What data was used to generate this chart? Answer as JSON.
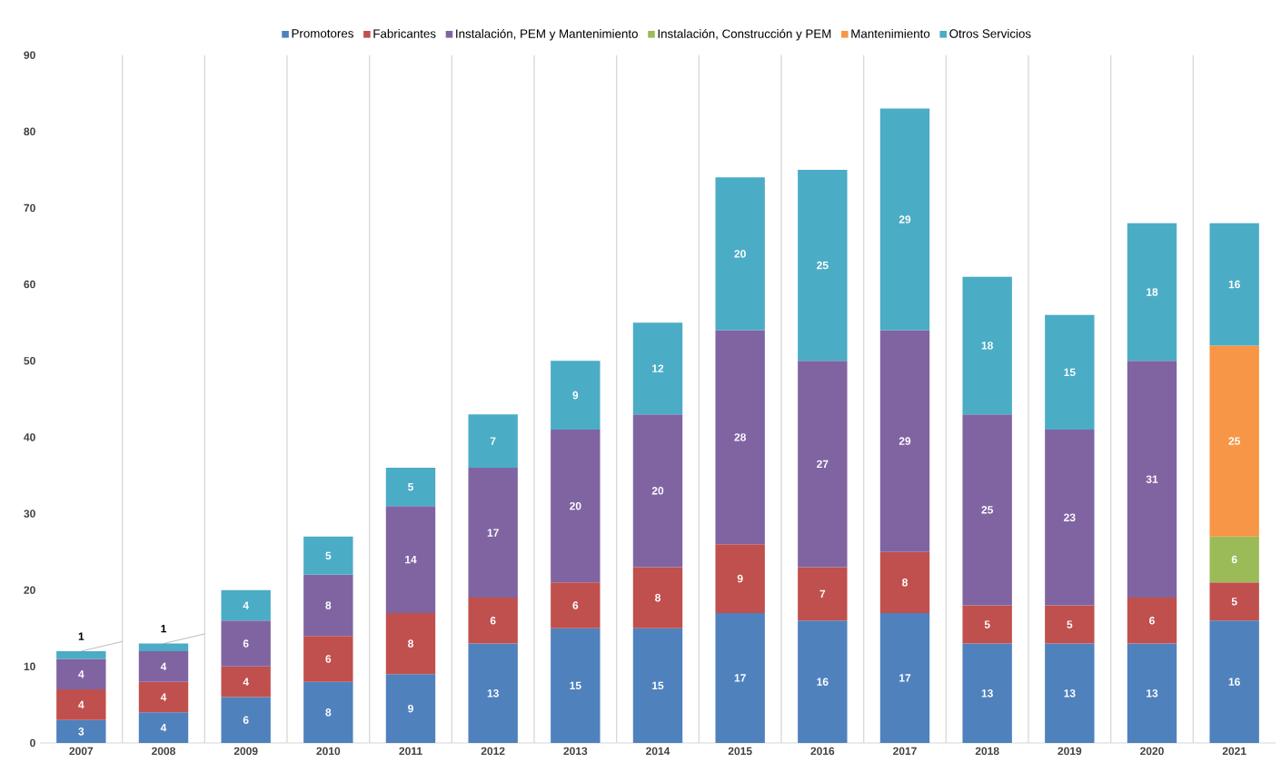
{
  "chart_data": {
    "type": "bar",
    "stacked": true,
    "data_labels": true,
    "legend": "top",
    "grid": "x",
    "categories": [
      "2007",
      "2008",
      "2009",
      "2010",
      "2011",
      "2012",
      "2013",
      "2014",
      "2015",
      "2016",
      "2017",
      "2018",
      "2019",
      "2020",
      "2021"
    ],
    "ylim": [
      0,
      90
    ],
    "yticks": [
      0,
      10,
      20,
      30,
      40,
      50,
      60,
      70,
      80,
      90
    ],
    "series": [
      {
        "name": "Promotores",
        "color": "#4f81bd",
        "values": [
          3,
          4,
          6,
          8,
          9,
          13,
          15,
          15,
          17,
          16,
          17,
          13,
          13,
          13,
          16
        ]
      },
      {
        "name": "Fabricantes",
        "color": "#c0504d",
        "values": [
          4,
          4,
          4,
          6,
          8,
          6,
          6,
          8,
          9,
          7,
          8,
          5,
          5,
          6,
          5
        ]
      },
      {
        "name": "Instalación, PEM y Mantenimiento",
        "color": "#8064a2",
        "values": [
          4,
          4,
          6,
          8,
          14,
          17,
          20,
          20,
          28,
          27,
          29,
          25,
          23,
          31,
          null
        ]
      },
      {
        "name": "Instalación, Construcción y PEM",
        "color": "#9bbb59",
        "values": [
          null,
          null,
          null,
          null,
          null,
          null,
          null,
          null,
          null,
          null,
          null,
          null,
          null,
          null,
          6
        ]
      },
      {
        "name": "Mantenimiento",
        "color": "#f79646",
        "values": [
          null,
          null,
          null,
          null,
          null,
          null,
          null,
          null,
          null,
          null,
          null,
          null,
          null,
          null,
          25
        ]
      },
      {
        "name": "Otros Servicios",
        "color": "#4bacc6",
        "values": [
          1,
          1,
          4,
          5,
          5,
          7,
          9,
          12,
          20,
          25,
          29,
          18,
          15,
          18,
          16
        ]
      }
    ]
  }
}
